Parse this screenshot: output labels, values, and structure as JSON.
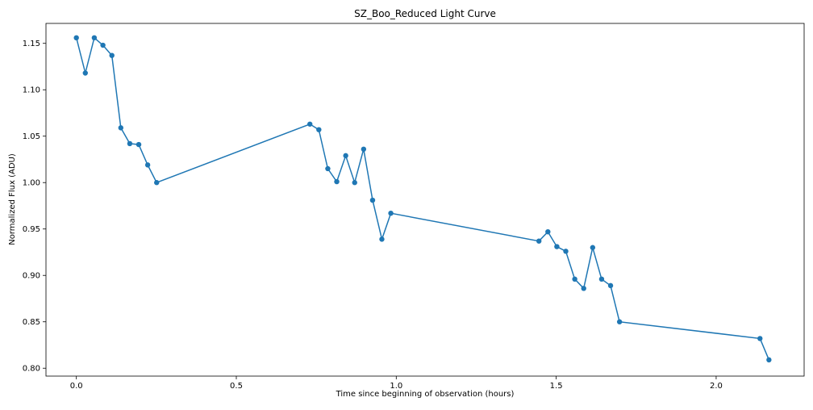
{
  "chart_data": {
    "type": "line",
    "title": "SZ_Boo_Reduced Light Curve",
    "xlabel": "Time since beginning of observation (hours)",
    "ylabel": "Normalized Flux (ADU)",
    "xlim": [
      -0.095,
      2.275
    ],
    "ylim": [
      0.7915,
      1.1715
    ],
    "xticks": [
      0.0,
      0.5,
      1.0,
      1.5,
      2.0
    ],
    "xtick_labels": [
      "0.0",
      "0.5",
      "1.0",
      "1.5",
      "2.0"
    ],
    "yticks": [
      0.8,
      0.85,
      0.9,
      0.95,
      1.0,
      1.05,
      1.1,
      1.15
    ],
    "ytick_labels": [
      "0.80",
      "0.85",
      "0.90",
      "0.95",
      "1.00",
      "1.05",
      "1.10",
      "1.15"
    ],
    "grid": false,
    "line_color": "#1f77b4",
    "series": [
      {
        "name": "SZ_Boo",
        "x": [
          0.0,
          0.028,
          0.056,
          0.083,
          0.111,
          0.139,
          0.167,
          0.195,
          0.223,
          0.251,
          0.73,
          0.758,
          0.786,
          0.814,
          0.842,
          0.87,
          0.898,
          0.926,
          0.955,
          0.983,
          1.446,
          1.474,
          1.502,
          1.53,
          1.558,
          1.586,
          1.614,
          1.642,
          1.67,
          1.698,
          2.137,
          2.165
        ],
        "y": [
          1.156,
          1.118,
          1.156,
          1.148,
          1.137,
          1.059,
          1.042,
          1.041,
          1.019,
          1.0,
          1.063,
          1.057,
          1.015,
          1.001,
          1.029,
          1.0,
          1.036,
          0.981,
          0.939,
          0.967,
          0.937,
          0.947,
          0.931,
          0.926,
          0.896,
          0.886,
          0.93,
          0.896,
          0.889,
          0.85,
          0.832,
          0.809
        ]
      }
    ]
  }
}
